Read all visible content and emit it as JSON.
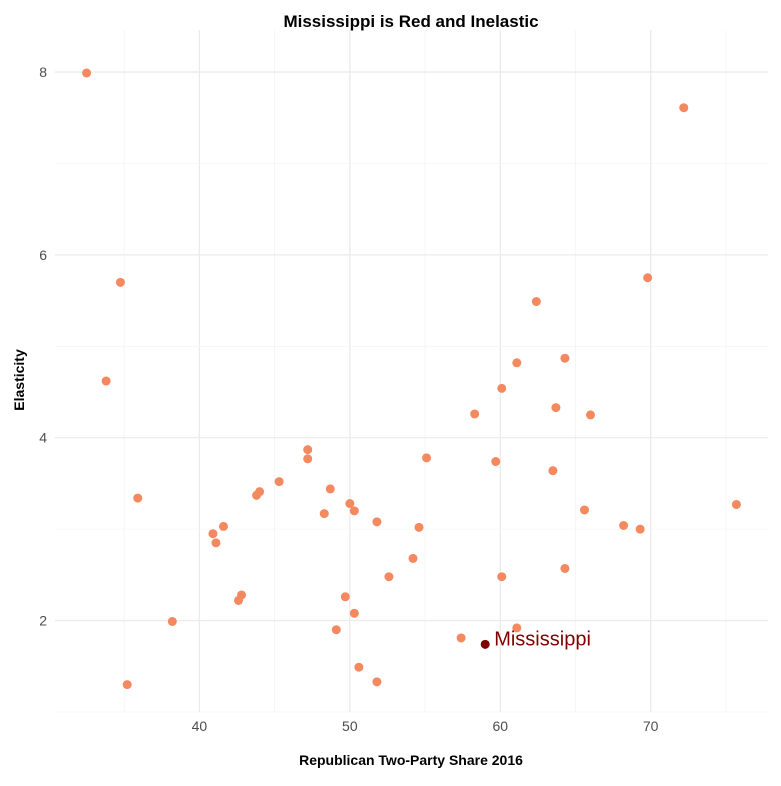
{
  "chart_data": {
    "type": "scatter",
    "title": "Mississippi is Red and Inelastic",
    "xlabel": "Republican Two-Party Share 2016",
    "ylabel": "Elasticity",
    "xlim": [
      30.4,
      77.8
    ],
    "ylim": [
      1.0,
      8.46
    ],
    "xticks": [
      40,
      50,
      60,
      70
    ],
    "yticks": [
      2,
      4,
      6,
      8
    ],
    "grid": true,
    "point_color": "#F4895F",
    "highlight_color": "#7F0000",
    "points": [
      [
        32.5,
        7.99
      ],
      [
        72.2,
        7.61
      ],
      [
        34.75,
        5.7
      ],
      [
        69.8,
        5.75
      ],
      [
        62.4,
        5.49
      ],
      [
        33.8,
        4.62
      ],
      [
        61.1,
        4.82
      ],
      [
        64.3,
        4.87
      ],
      [
        60.1,
        4.54
      ],
      [
        63.7,
        4.33
      ],
      [
        58.3,
        4.26
      ],
      [
        66.0,
        4.25
      ],
      [
        47.2,
        3.87
      ],
      [
        47.2,
        3.77
      ],
      [
        55.1,
        3.78
      ],
      [
        59.7,
        3.74
      ],
      [
        63.5,
        3.64
      ],
      [
        45.3,
        3.52
      ],
      [
        44.0,
        3.41
      ],
      [
        43.8,
        3.37
      ],
      [
        35.9,
        3.34
      ],
      [
        48.7,
        3.44
      ],
      [
        50.0,
        3.28
      ],
      [
        50.3,
        3.2
      ],
      [
        48.3,
        3.17
      ],
      [
        65.6,
        3.21
      ],
      [
        75.7,
        3.27
      ],
      [
        51.8,
        3.08
      ],
      [
        54.6,
        3.02
      ],
      [
        68.2,
        3.04
      ],
      [
        69.3,
        3.0
      ],
      [
        41.6,
        3.03
      ],
      [
        40.9,
        2.95
      ],
      [
        41.1,
        2.85
      ],
      [
        54.2,
        2.68
      ],
      [
        64.3,
        2.57
      ],
      [
        52.6,
        2.48
      ],
      [
        60.1,
        2.48
      ],
      [
        42.8,
        2.28
      ],
      [
        42.6,
        2.22
      ],
      [
        49.7,
        2.26
      ],
      [
        50.3,
        2.08
      ],
      [
        38.2,
        1.99
      ],
      [
        49.1,
        1.9
      ],
      [
        61.1,
        1.92
      ],
      [
        57.4,
        1.81
      ],
      [
        50.6,
        1.49
      ],
      [
        35.2,
        1.3
      ],
      [
        51.8,
        1.33
      ]
    ],
    "highlight": {
      "label": "Mississippi",
      "x": 59.0,
      "y": 1.74
    }
  }
}
